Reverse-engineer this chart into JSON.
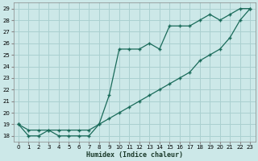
{
  "xlabel": "Humidex (Indice chaleur)",
  "bg_color": "#cce8e8",
  "grid_color": "#aad0d0",
  "line_color": "#1a6b5a",
  "xlim": [
    -0.5,
    23.5
  ],
  "ylim": [
    17.5,
    29.5
  ],
  "yticks": [
    18,
    19,
    20,
    21,
    22,
    23,
    24,
    25,
    26,
    27,
    28,
    29
  ],
  "xticks": [
    0,
    1,
    2,
    3,
    4,
    5,
    6,
    7,
    8,
    9,
    10,
    11,
    12,
    13,
    14,
    15,
    16,
    17,
    18,
    19,
    20,
    21,
    22,
    23
  ],
  "line1_x": [
    0,
    1,
    2,
    3,
    4,
    5,
    6,
    7,
    8,
    9,
    10,
    11,
    12,
    13,
    14,
    15,
    16,
    17,
    18,
    19,
    20,
    21,
    22,
    23
  ],
  "line1_y": [
    19,
    18,
    18,
    18.5,
    18,
    18,
    18,
    18,
    19,
    21.5,
    25.5,
    25.5,
    25.5,
    26,
    25.5,
    27.5,
    27.5,
    27.5,
    28,
    28.5,
    28,
    28.5,
    29,
    29
  ],
  "line2_x": [
    0,
    1,
    2,
    3,
    4,
    5,
    6,
    7,
    8,
    9,
    10,
    11,
    12,
    13,
    14,
    15,
    16,
    17,
    18,
    19,
    20,
    21,
    22,
    23
  ],
  "line2_y": [
    19,
    18.5,
    18.5,
    18.5,
    18.5,
    18.5,
    18.5,
    18.5,
    19,
    19.5,
    20,
    20.5,
    21,
    21.5,
    22,
    22.5,
    23,
    23.5,
    24.5,
    25,
    25.5,
    26.5,
    28,
    29
  ]
}
